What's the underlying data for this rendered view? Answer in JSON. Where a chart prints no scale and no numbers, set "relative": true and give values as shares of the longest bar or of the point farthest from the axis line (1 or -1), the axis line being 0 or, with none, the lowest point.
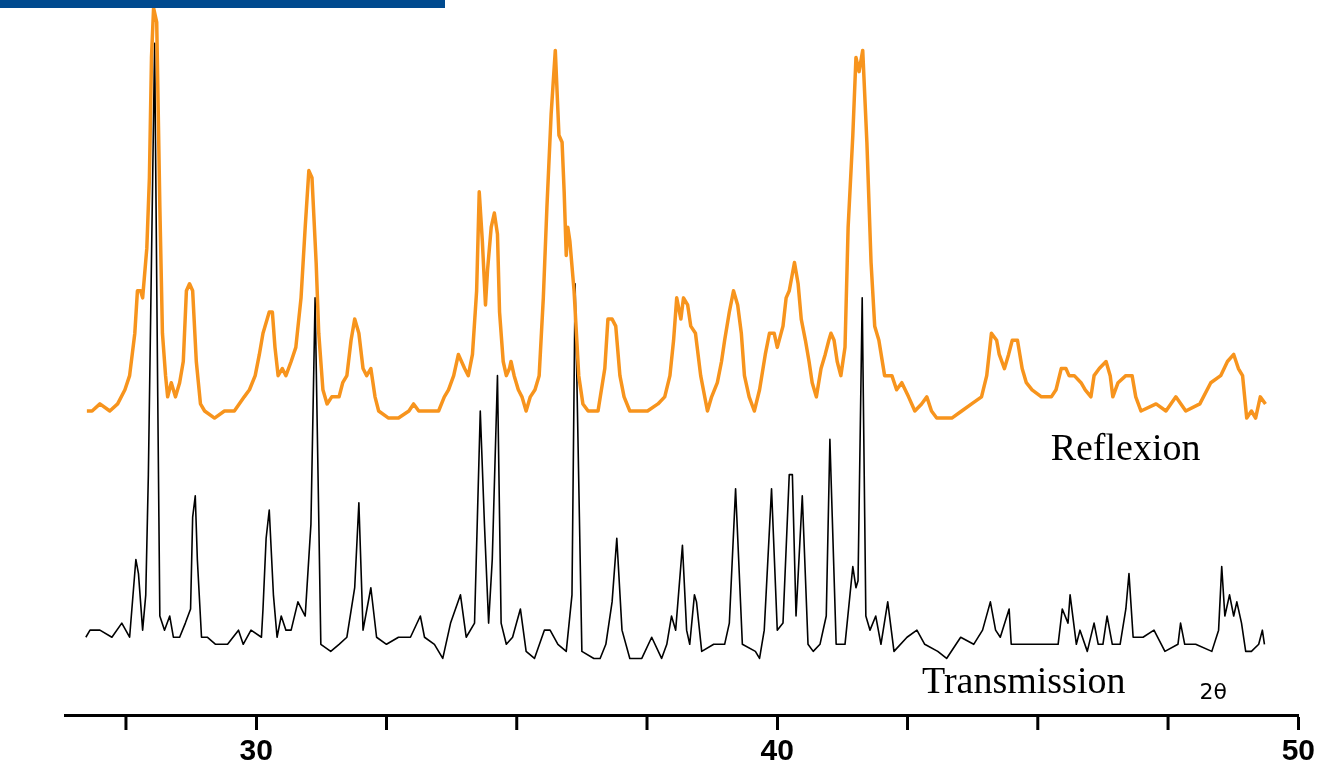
{
  "chart_data": {
    "type": "line",
    "relative": true,
    "xlabel": "2θ",
    "xlim": [
      26.33,
      50
    ],
    "xticks": [
      {
        "value": 27.5,
        "label": null
      },
      30,
      {
        "value": 32.5,
        "label": null
      },
      {
        "value": 35,
        "label": null
      },
      {
        "value": 37.5,
        "label": null
      },
      40,
      {
        "value": 42.5,
        "label": null
      },
      {
        "value": 45,
        "label": null
      },
      {
        "value": 47.5,
        "label": null
      },
      50
    ],
    "grid": false,
    "legend": false,
    "marker": "none",
    "line_style": "solid",
    "series": [
      {
        "name": "Reflexion",
        "color": "#f7941d",
        "x": [
          26.75,
          26.85,
          27.0,
          27.19,
          27.34,
          27.48,
          27.57,
          27.67,
          27.72,
          27.78,
          27.82,
          27.9,
          27.95,
          27.99,
          28.03,
          28.09,
          28.15,
          28.2,
          28.26,
          28.3,
          28.37,
          28.45,
          28.53,
          28.6,
          28.66,
          28.72,
          28.78,
          28.85,
          28.93,
          29.01,
          29.2,
          29.39,
          29.58,
          29.77,
          29.87,
          29.98,
          30.06,
          30.13,
          30.25,
          30.31,
          30.36,
          30.42,
          30.5,
          30.57,
          30.67,
          30.76,
          30.86,
          30.94,
          31.01,
          31.07,
          31.15,
          31.2,
          31.28,
          31.36,
          31.45,
          31.59,
          31.66,
          31.74,
          31.82,
          31.89,
          31.97,
          32.05,
          32.12,
          32.2,
          32.28,
          32.35,
          32.54,
          32.73,
          32.93,
          33.02,
          33.12,
          33.31,
          33.5,
          33.61,
          33.69,
          33.79,
          33.88,
          34.0,
          34.07,
          34.15,
          34.23,
          34.28,
          34.34,
          34.4,
          34.44,
          34.51,
          34.57,
          34.63,
          34.67,
          34.74,
          34.8,
          34.86,
          34.89,
          34.95,
          35.03,
          35.1,
          35.18,
          35.26,
          35.35,
          35.43,
          35.51,
          35.58,
          35.66,
          35.74,
          35.81,
          35.87,
          35.91,
          35.95,
          35.98,
          36.02,
          36.1,
          36.19,
          36.27,
          36.37,
          36.56,
          36.69,
          36.75,
          36.83,
          36.9,
          36.98,
          37.06,
          37.17,
          37.32,
          37.51,
          37.71,
          37.84,
          37.94,
          38.01,
          38.07,
          38.15,
          38.2,
          38.28,
          38.34,
          38.43,
          38.53,
          38.66,
          38.74,
          38.85,
          38.93,
          38.99,
          39.08,
          39.16,
          39.24,
          39.31,
          39.37,
          39.46,
          39.56,
          39.66,
          39.77,
          39.85,
          39.94,
          40.0,
          40.11,
          40.17,
          40.23,
          40.33,
          40.4,
          40.46,
          40.54,
          40.61,
          40.67,
          40.75,
          40.84,
          40.92,
          40.99,
          41.03,
          41.09,
          41.15,
          41.22,
          41.3,
          41.36,
          41.45,
          41.51,
          41.57,
          41.64,
          41.72,
          41.8,
          41.87,
          41.95,
          42.06,
          42.2,
          42.29,
          42.39,
          42.52,
          42.64,
          42.77,
          42.87,
          42.96,
          43.06,
          43.21,
          43.35,
          43.54,
          43.73,
          43.92,
          44.02,
          44.11,
          44.21,
          44.26,
          44.36,
          44.44,
          44.51,
          44.61,
          44.7,
          44.78,
          44.89,
          45.07,
          45.26,
          45.35,
          45.45,
          45.54,
          45.6,
          45.7,
          45.83,
          45.91,
          46.02,
          46.08,
          46.18,
          46.31,
          46.39,
          46.44,
          46.54,
          46.69,
          46.81,
          46.88,
          46.98,
          47.27,
          47.46,
          47.65,
          47.84,
          48.11,
          48.32,
          48.51,
          48.64,
          48.76,
          48.85,
          48.93,
          49.01,
          49.1,
          49.18,
          49.27,
          49.37
        ],
        "values": [
          0.43,
          0.43,
          0.44,
          0.43,
          0.44,
          0.46,
          0.48,
          0.54,
          0.6,
          0.6,
          0.59,
          0.66,
          0.76,
          0.93,
          1.0,
          0.98,
          0.72,
          0.54,
          0.48,
          0.45,
          0.47,
          0.45,
          0.47,
          0.5,
          0.6,
          0.61,
          0.6,
          0.5,
          0.44,
          0.43,
          0.42,
          0.43,
          0.43,
          0.45,
          0.46,
          0.48,
          0.51,
          0.54,
          0.57,
          0.57,
          0.52,
          0.48,
          0.49,
          0.48,
          0.5,
          0.52,
          0.59,
          0.69,
          0.77,
          0.76,
          0.64,
          0.54,
          0.46,
          0.44,
          0.45,
          0.45,
          0.47,
          0.48,
          0.53,
          0.56,
          0.54,
          0.49,
          0.48,
          0.49,
          0.45,
          0.43,
          0.42,
          0.42,
          0.43,
          0.44,
          0.43,
          0.43,
          0.43,
          0.45,
          0.46,
          0.48,
          0.51,
          0.49,
          0.48,
          0.51,
          0.6,
          0.74,
          0.67,
          0.58,
          0.63,
          0.69,
          0.71,
          0.68,
          0.57,
          0.5,
          0.48,
          0.49,
          0.5,
          0.48,
          0.46,
          0.45,
          0.43,
          0.45,
          0.46,
          0.48,
          0.59,
          0.72,
          0.85,
          0.94,
          0.82,
          0.81,
          0.74,
          0.65,
          0.69,
          0.67,
          0.6,
          0.48,
          0.44,
          0.43,
          0.43,
          0.49,
          0.56,
          0.56,
          0.55,
          0.48,
          0.45,
          0.43,
          0.43,
          0.43,
          0.44,
          0.45,
          0.48,
          0.53,
          0.59,
          0.56,
          0.59,
          0.58,
          0.55,
          0.54,
          0.48,
          0.43,
          0.45,
          0.47,
          0.5,
          0.53,
          0.57,
          0.6,
          0.58,
          0.54,
          0.48,
          0.45,
          0.43,
          0.46,
          0.51,
          0.54,
          0.54,
          0.52,
          0.55,
          0.59,
          0.6,
          0.64,
          0.61,
          0.56,
          0.53,
          0.5,
          0.47,
          0.45,
          0.49,
          0.51,
          0.53,
          0.54,
          0.53,
          0.5,
          0.48,
          0.52,
          0.69,
          0.82,
          0.93,
          0.91,
          0.94,
          0.81,
          0.64,
          0.55,
          0.53,
          0.48,
          0.48,
          0.46,
          0.47,
          0.45,
          0.43,
          0.44,
          0.45,
          0.43,
          0.42,
          0.42,
          0.42,
          0.43,
          0.44,
          0.45,
          0.48,
          0.54,
          0.53,
          0.51,
          0.49,
          0.51,
          0.53,
          0.53,
          0.49,
          0.47,
          0.46,
          0.45,
          0.45,
          0.46,
          0.49,
          0.49,
          0.48,
          0.48,
          0.47,
          0.46,
          0.45,
          0.48,
          0.49,
          0.5,
          0.48,
          0.45,
          0.47,
          0.48,
          0.48,
          0.45,
          0.43,
          0.44,
          0.43,
          0.45,
          0.43,
          0.44,
          0.47,
          0.48,
          0.5,
          0.51,
          0.49,
          0.48,
          0.42,
          0.43,
          0.42,
          0.45,
          0.44
        ]
      },
      {
        "name": "Transmission",
        "color": "#000000",
        "x": [
          26.73,
          26.81,
          27.0,
          27.23,
          27.42,
          27.57,
          27.69,
          27.74,
          27.82,
          27.88,
          27.93,
          28.05,
          28.11,
          28.15,
          28.24,
          28.34,
          28.41,
          28.53,
          28.64,
          28.74,
          28.78,
          28.83,
          28.87,
          28.95,
          29.06,
          29.22,
          29.45,
          29.66,
          29.75,
          29.9,
          30.1,
          30.13,
          30.19,
          30.25,
          30.33,
          30.4,
          30.48,
          30.57,
          30.67,
          30.8,
          30.94,
          31.05,
          31.13,
          31.24,
          31.43,
          31.59,
          31.74,
          31.89,
          31.97,
          32.05,
          32.2,
          32.31,
          32.5,
          32.73,
          32.96,
          33.15,
          33.23,
          33.42,
          33.58,
          33.73,
          33.92,
          34.03,
          34.19,
          34.3,
          34.38,
          34.46,
          34.53,
          34.63,
          34.7,
          34.8,
          34.92,
          35.07,
          35.18,
          35.34,
          35.53,
          35.64,
          35.79,
          35.95,
          36.06,
          36.12,
          36.25,
          36.48,
          36.6,
          36.71,
          36.83,
          36.92,
          37.02,
          37.17,
          37.4,
          37.59,
          37.78,
          37.88,
          37.97,
          38.05,
          38.18,
          38.26,
          38.32,
          38.41,
          38.45,
          38.55,
          38.78,
          38.99,
          39.08,
          39.2,
          39.33,
          39.58,
          39.66,
          39.75,
          39.89,
          40.0,
          40.11,
          40.23,
          40.29,
          40.36,
          40.48,
          40.59,
          40.69,
          40.82,
          40.94,
          41.01,
          41.13,
          41.3,
          41.45,
          41.51,
          41.55,
          41.63,
          41.7,
          41.78,
          41.89,
          41.99,
          42.12,
          42.24,
          42.49,
          42.68,
          42.83,
          43.08,
          43.25,
          43.52,
          43.77,
          43.94,
          44.09,
          44.19,
          44.28,
          44.45,
          44.49,
          44.8,
          45.14,
          45.39,
          45.47,
          45.58,
          45.62,
          45.74,
          45.81,
          45.95,
          46.08,
          46.16,
          46.25,
          46.33,
          46.43,
          46.58,
          46.69,
          46.75,
          46.83,
          47.02,
          47.23,
          47.44,
          47.69,
          47.74,
          47.82,
          48.03,
          48.34,
          48.47,
          48.53,
          48.59,
          48.68,
          48.76,
          48.82,
          48.91,
          48.99,
          49.1,
          49.24,
          49.31,
          49.35
        ],
        "values": [
          0.11,
          0.12,
          0.12,
          0.11,
          0.13,
          0.11,
          0.22,
          0.2,
          0.12,
          0.17,
          0.34,
          0.95,
          0.45,
          0.14,
          0.12,
          0.14,
          0.11,
          0.11,
          0.13,
          0.15,
          0.28,
          0.31,
          0.22,
          0.11,
          0.11,
          0.1,
          0.1,
          0.12,
          0.1,
          0.12,
          0.11,
          0.15,
          0.25,
          0.29,
          0.17,
          0.11,
          0.14,
          0.12,
          0.12,
          0.16,
          0.14,
          0.27,
          0.59,
          0.1,
          0.09,
          0.1,
          0.11,
          0.18,
          0.3,
          0.12,
          0.18,
          0.11,
          0.1,
          0.11,
          0.11,
          0.14,
          0.11,
          0.1,
          0.08,
          0.13,
          0.17,
          0.11,
          0.13,
          0.43,
          0.27,
          0.13,
          0.22,
          0.48,
          0.13,
          0.1,
          0.11,
          0.15,
          0.09,
          0.08,
          0.12,
          0.12,
          0.1,
          0.09,
          0.17,
          0.61,
          0.09,
          0.08,
          0.08,
          0.1,
          0.16,
          0.25,
          0.12,
          0.08,
          0.08,
          0.11,
          0.08,
          0.1,
          0.14,
          0.12,
          0.24,
          0.12,
          0.1,
          0.17,
          0.16,
          0.09,
          0.1,
          0.1,
          0.13,
          0.32,
          0.1,
          0.09,
          0.08,
          0.12,
          0.32,
          0.12,
          0.13,
          0.34,
          0.34,
          0.14,
          0.31,
          0.1,
          0.09,
          0.1,
          0.14,
          0.39,
          0.1,
          0.1,
          0.21,
          0.18,
          0.19,
          0.59,
          0.14,
          0.12,
          0.14,
          0.1,
          0.16,
          0.09,
          0.11,
          0.12,
          0.1,
          0.09,
          0.08,
          0.11,
          0.1,
          0.12,
          0.16,
          0.12,
          0.11,
          0.15,
          0.1,
          0.1,
          0.1,
          0.1,
          0.15,
          0.13,
          0.17,
          0.1,
          0.12,
          0.09,
          0.13,
          0.1,
          0.1,
          0.14,
          0.1,
          0.1,
          0.15,
          0.2,
          0.11,
          0.11,
          0.12,
          0.09,
          0.1,
          0.13,
          0.1,
          0.1,
          0.09,
          0.12,
          0.21,
          0.14,
          0.17,
          0.14,
          0.16,
          0.13,
          0.09,
          0.09,
          0.1,
          0.12,
          0.1
        ]
      }
    ]
  }
}
